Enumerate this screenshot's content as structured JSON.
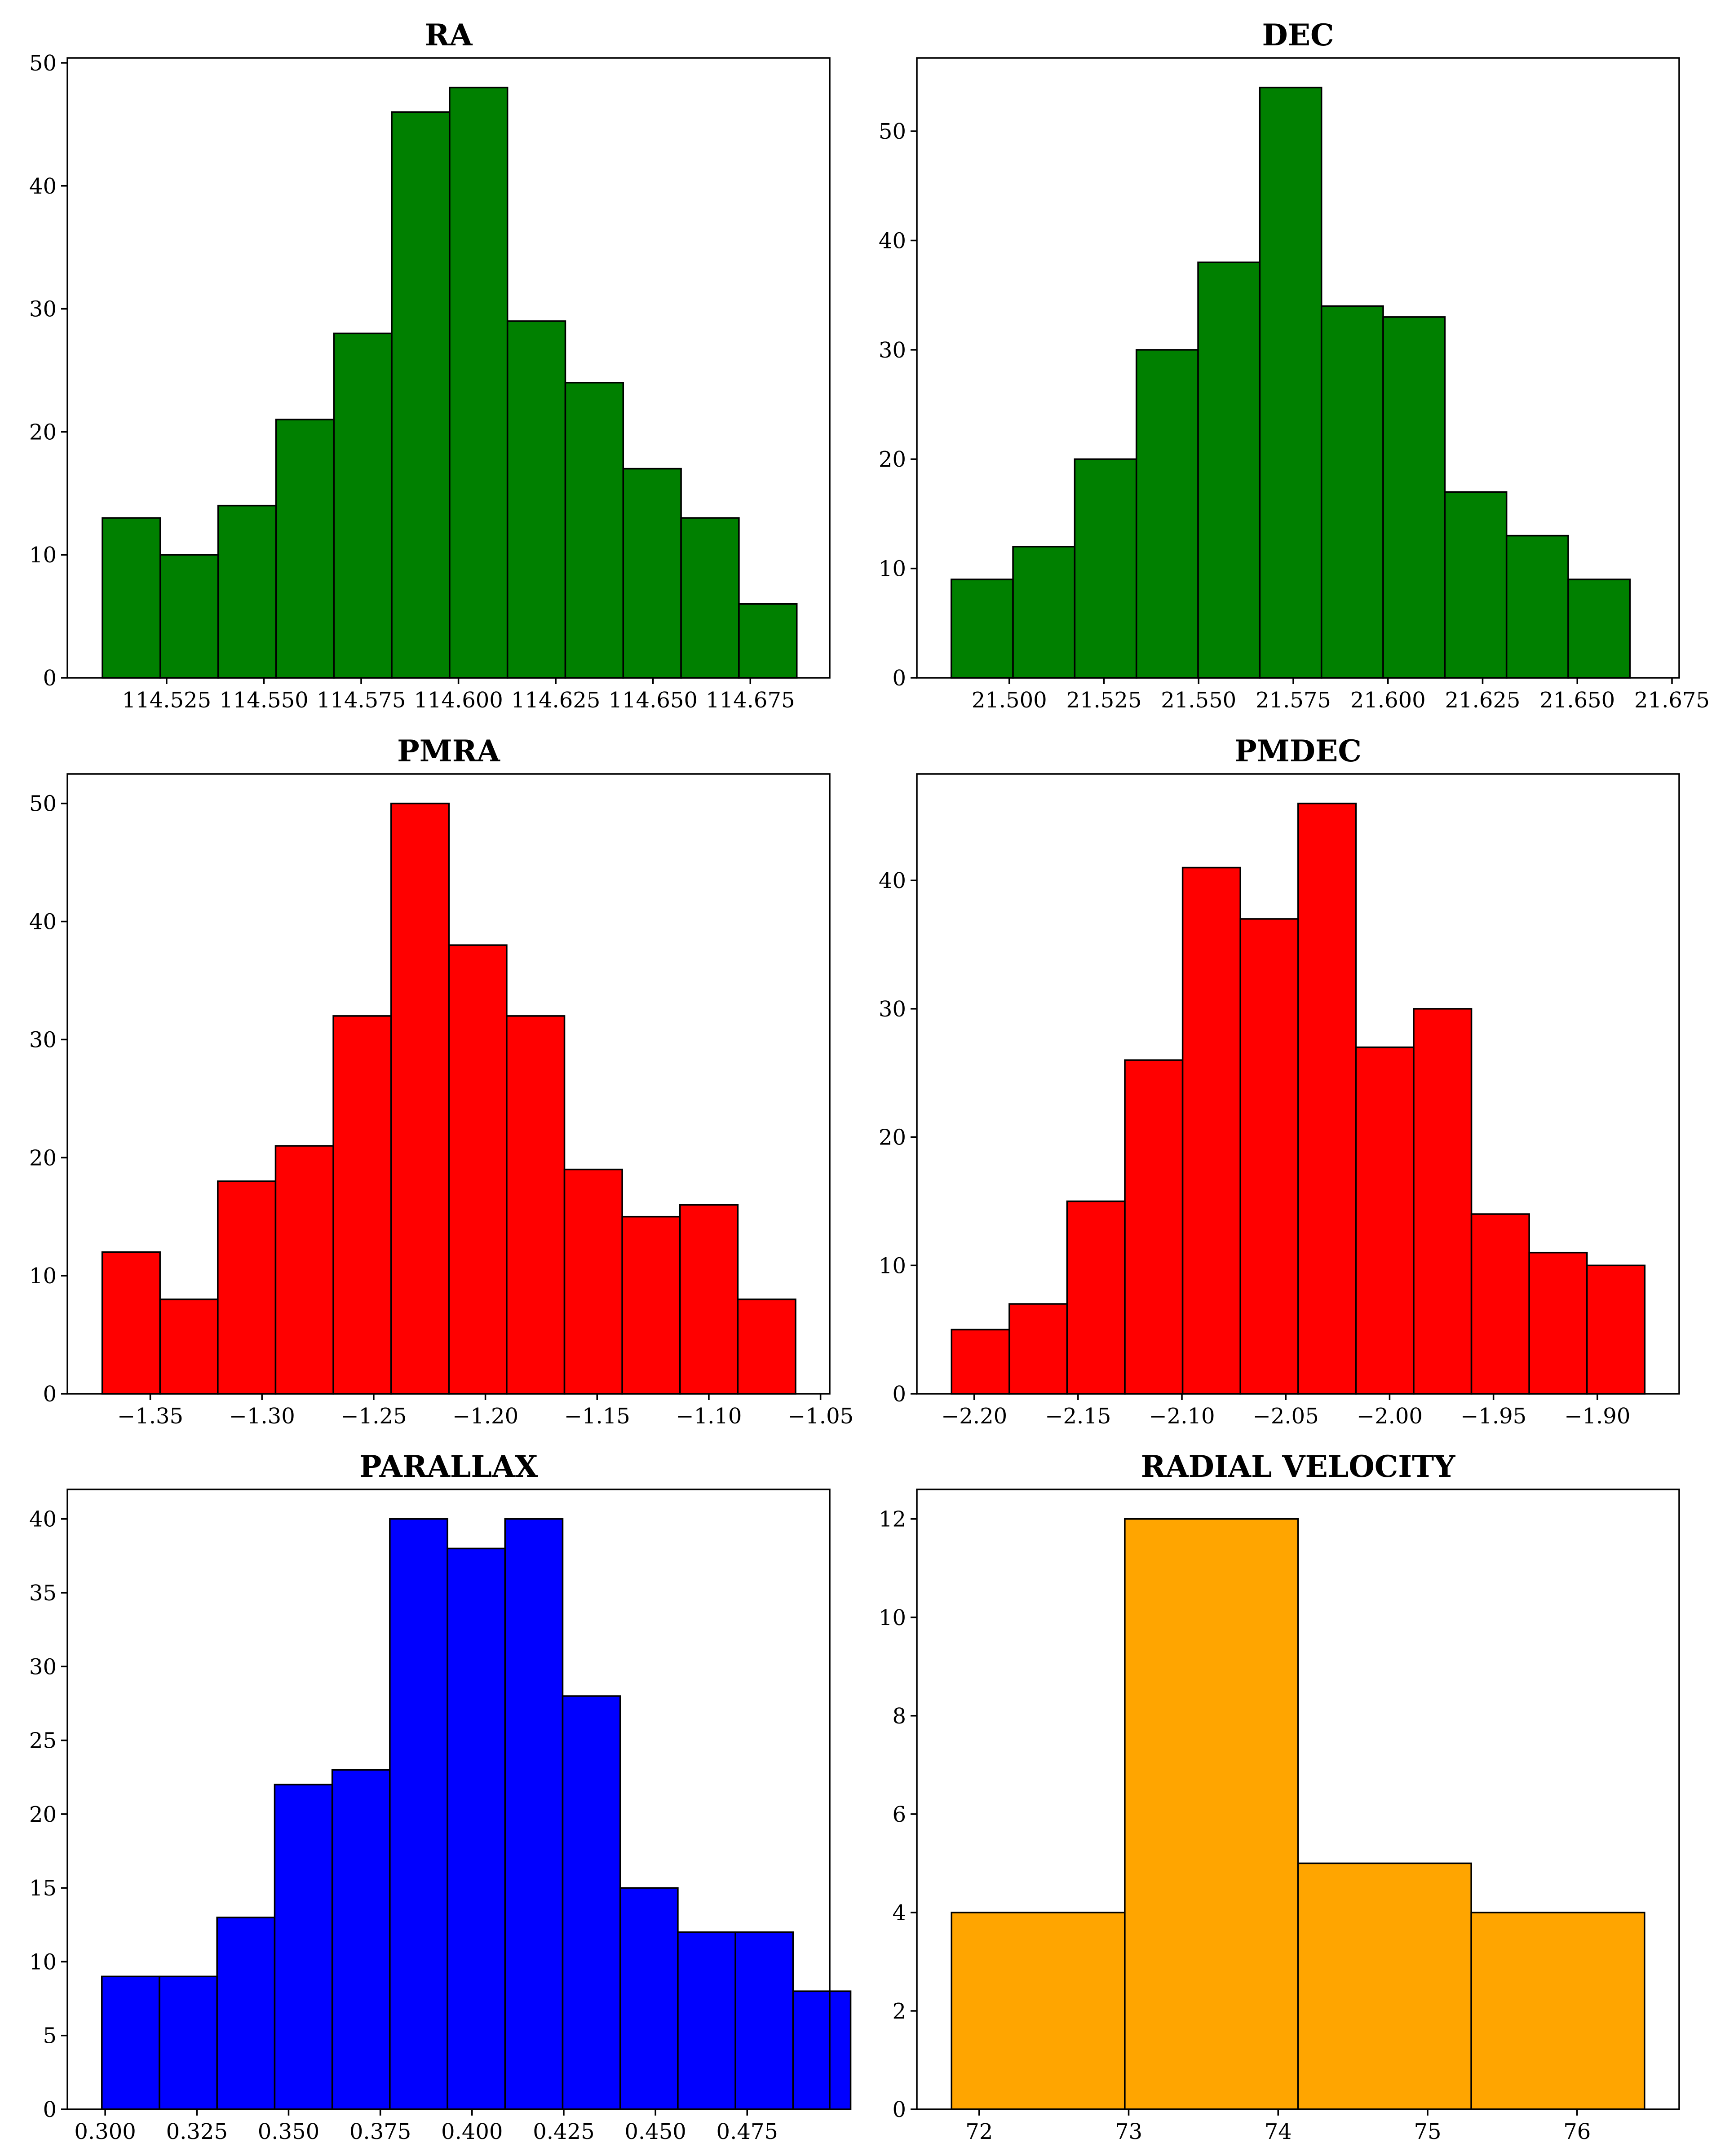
{
  "chart_data": [
    {
      "type": "bar",
      "title": "RA",
      "color": "#008000",
      "bin_start": 114.5085,
      "bin_width": 0.01487,
      "values": [
        13,
        10,
        14,
        21,
        28,
        46,
        48,
        29,
        24,
        17,
        13,
        6
      ],
      "xlim": [
        114.4995,
        114.6954
      ],
      "ylim": [
        0,
        50.4
      ],
      "xticks": [
        114.525,
        114.55,
        114.575,
        114.6,
        114.625,
        114.65,
        114.675
      ],
      "xtick_labels": [
        "114.525",
        "114.550",
        "114.575",
        "114.600",
        "114.625",
        "114.650",
        "114.675"
      ],
      "yticks": [
        0,
        10,
        20,
        30,
        40,
        50
      ],
      "ytick_labels": [
        "0",
        "10",
        "20",
        "30",
        "40",
        "50"
      ]
    },
    {
      "type": "bar",
      "title": "DEC",
      "color": "#008000",
      "bin_start": 21.4847,
      "bin_width": 0.01629,
      "values": [
        9,
        12,
        20,
        30,
        38,
        54,
        34,
        33,
        17,
        13,
        9
      ],
      "xlim": [
        21.4756,
        21.6769
      ],
      "ylim": [
        0,
        56.7
      ],
      "xticks": [
        21.5,
        21.525,
        21.55,
        21.575,
        21.6,
        21.625,
        21.65,
        21.675
      ],
      "xtick_labels": [
        "21.500",
        "21.525",
        "21.550",
        "21.575",
        "21.600",
        "21.625",
        "21.650",
        "21.675"
      ],
      "yticks": [
        0,
        10,
        20,
        30,
        40,
        50
      ],
      "ytick_labels": [
        "0",
        "10",
        "20",
        "30",
        "40",
        "50"
      ]
    },
    {
      "type": "bar",
      "title": "PMRA",
      "color": "#ff0000",
      "bin_start": -1.3715,
      "bin_width": 0.02586,
      "values": [
        12,
        8,
        18,
        21,
        32,
        50,
        38,
        32,
        19,
        15,
        16,
        8
      ],
      "xlim": [
        -1.3871,
        -1.0459
      ],
      "ylim": [
        0,
        52.5
      ],
      "xticks": [
        -1.35,
        -1.3,
        -1.25,
        -1.2,
        -1.15,
        -1.1,
        -1.05
      ],
      "xtick_labels": [
        "−1.35",
        "−1.30",
        "−1.25",
        "−1.20",
        "−1.15",
        "−1.10",
        "−1.05"
      ],
      "yticks": [
        0,
        10,
        20,
        30,
        40,
        50
      ],
      "ytick_labels": [
        "0",
        "10",
        "20",
        "30",
        "40",
        "50"
      ]
    },
    {
      "type": "bar",
      "title": "PMDEC",
      "color": "#ff0000",
      "bin_start": -2.2109,
      "bin_width": 0.02781,
      "values": [
        5,
        7,
        15,
        26,
        41,
        37,
        46,
        27,
        30,
        14,
        11,
        10
      ],
      "xlim": [
        -2.2276,
        -1.8606
      ],
      "ylim": [
        0,
        48.3
      ],
      "xticks": [
        -2.2,
        -2.15,
        -2.1,
        -2.05,
        -2.0,
        -1.95,
        -1.9
      ],
      "xtick_labels": [
        "−2.20",
        "−2.15",
        "−2.10",
        "−2.05",
        "−2.00",
        "−1.95",
        "−1.90"
      ],
      "yticks": [
        0,
        10,
        20,
        30,
        40
      ],
      "ytick_labels": [
        "0",
        "10",
        "20",
        "30",
        "40"
      ]
    },
    {
      "type": "bar",
      "title": "PARALLAX",
      "color": "#0000ff",
      "bin_start": 0.2991,
      "bin_width": 0.0157,
      "values": [
        9,
        9,
        13,
        22,
        23,
        40,
        38,
        40,
        28,
        15,
        12,
        12,
        8
      ],
      "xlim": [
        0.2897,
        0.4975
      ],
      "ylim": [
        0,
        42
      ],
      "xticks": [
        0.3,
        0.325,
        0.35,
        0.375,
        0.4,
        0.425,
        0.45,
        0.475
      ],
      "xtick_labels": [
        "0.300",
        "0.325",
        "0.350",
        "0.375",
        "0.400",
        "0.425",
        "0.450",
        "0.475"
      ],
      "yticks": [
        0,
        5,
        10,
        15,
        20,
        25,
        30,
        35,
        40
      ],
      "ytick_labels": [
        "0",
        "5",
        "10",
        "15",
        "20",
        "25",
        "30",
        "35",
        "40"
      ]
    },
    {
      "type": "bar",
      "title": "RADIAL VELOCITY",
      "color": "#ffa500",
      "bin_start": 71.815,
      "bin_width": 1.159,
      "values": [
        4,
        12,
        5,
        4
      ],
      "xlim": [
        71.583,
        76.683
      ],
      "ylim": [
        0,
        12.6
      ],
      "xticks": [
        72,
        73,
        74,
        75,
        76
      ],
      "xtick_labels": [
        "72",
        "73",
        "74",
        "75",
        "76"
      ],
      "yticks": [
        0,
        2,
        4,
        6,
        8,
        10,
        12
      ],
      "ytick_labels": [
        "0",
        "2",
        "4",
        "6",
        "8",
        "10",
        "12"
      ]
    }
  ]
}
